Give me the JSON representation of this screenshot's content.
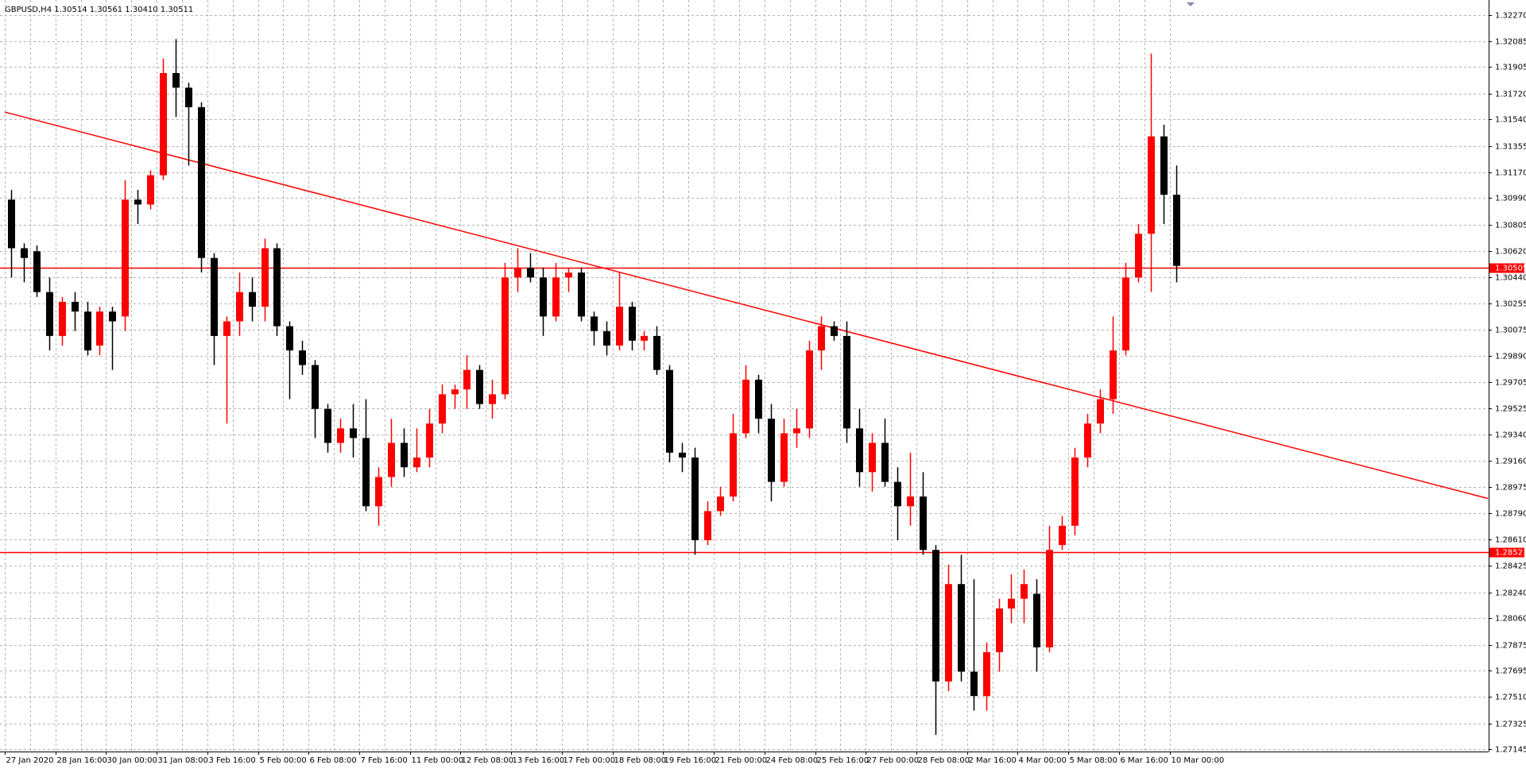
{
  "chart_data": {
    "type": "candlestick",
    "title": "GBPUSD,H4  1.30514 1.30561 1.30410 1.30511",
    "categories": [
      "27 Jan 2020",
      null,
      null,
      null,
      "28 Jan 16:00",
      null,
      null,
      null,
      "30 Jan 00:00",
      null,
      null,
      null,
      "31 Jan 08:00",
      null,
      null,
      null,
      "3 Feb 16:00",
      null,
      null,
      null,
      "5 Feb 00:00",
      null,
      null,
      null,
      "6 Feb 08:00",
      null,
      null,
      null,
      "7 Feb 16:00",
      null,
      null,
      null,
      "11 Feb 00:00",
      null,
      null,
      null,
      "12 Feb 08:00",
      null,
      null,
      null,
      "13 Feb 16:00",
      null,
      null,
      null,
      "17 Feb 00:00",
      null,
      null,
      null,
      "18 Feb 08:00",
      null,
      null,
      null,
      "19 Feb 16:00",
      null,
      null,
      null,
      "21 Feb 00:00",
      null,
      null,
      null,
      "24 Feb 08:00",
      null,
      null,
      null,
      "25 Feb 16:00",
      null,
      null,
      null,
      "27 Feb 00:00",
      null,
      null,
      null,
      "28 Feb 08:00",
      null,
      null,
      null,
      "2 Mar 16:00",
      null,
      null,
      null,
      "4 Mar 00:00",
      null,
      null,
      null,
      "5 Mar 08:00",
      null,
      null,
      null,
      "6 Mar 16:00",
      null,
      null,
      null,
      "10 Mar 00:00"
    ],
    "open": [
      1.3098,
      1.30641,
      1.3062,
      1.30335,
      1.30029,
      1.30267,
      1.30199,
      1.29962,
      1.30199,
      1.30165,
      1.3098,
      1.30946,
      1.3115,
      1.31863,
      1.31761,
      1.31625,
      1.30573,
      1.30029,
      1.30131,
      1.30335,
      1.30233,
      1.30641,
      1.30097,
      1.29928,
      1.29826,
      1.2952,
      1.29283,
      1.29384,
      1.29317,
      1.28841,
      1.29045,
      1.29283,
      1.29113,
      1.29181,
      1.29418,
      1.29622,
      1.29656,
      1.29792,
      1.29554,
      1.29622,
      1.30437,
      1.30505,
      1.30437,
      1.30165,
      1.30437,
      1.30471,
      1.30165,
      1.30063,
      1.29962,
      1.30233,
      1.29996,
      1.30029,
      1.29792,
      1.29215,
      1.29181,
      1.28604,
      1.28807,
      1.28909,
      1.2935,
      1.29724,
      1.29452,
      1.29011,
      1.2935,
      1.29384,
      1.29928,
      1.30097,
      1.30029,
      1.29384,
      1.29079,
      1.29283,
      1.29011,
      1.28841,
      1.28909,
      1.28536,
      1.27619,
      1.28298,
      1.27687,
      1.27517,
      1.27823,
      1.28128,
      1.28196,
      1.2823,
      1.27857,
      1.2857,
      1.28705,
      1.29181,
      1.29418,
      1.29588,
      1.29928,
      1.30437,
      1.30742,
      1.31421,
      1.31014
    ],
    "high": [
      1.31048,
      1.30675,
      1.30661,
      1.30437,
      1.30301,
      1.30335,
      1.30267,
      1.30233,
      1.30233,
      1.31116,
      1.31048,
      1.31184,
      1.31965,
      1.321,
      1.31795,
      1.31659,
      1.30607,
      1.30165,
      1.30471,
      1.30437,
      1.30708,
      1.30675,
      1.30131,
      1.29996,
      1.2986,
      1.29554,
      1.29452,
      1.29554,
      1.29588,
      1.29113,
      1.29452,
      1.29384,
      1.29384,
      1.2952,
      1.2969,
      1.2969,
      1.29894,
      1.29826,
      1.29724,
      1.30539,
      1.30641,
      1.30607,
      1.30505,
      1.30539,
      1.30505,
      1.30505,
      1.30199,
      1.30131,
      1.30471,
      1.30267,
      1.30063,
      1.30097,
      1.29826,
      1.29283,
      1.29249,
      1.28875,
      1.28977,
      1.29486,
      1.29826,
      1.29758,
      1.29554,
      1.29452,
      1.2952,
      1.29996,
      1.30165,
      1.30131,
      1.30131,
      1.2952,
      1.2935,
      1.29452,
      1.29113,
      1.29215,
      1.29079,
      1.2857,
      1.28434,
      1.28502,
      1.28332,
      1.27891,
      1.28196,
      1.28366,
      1.284,
      1.28332,
      1.28705,
      1.28773,
      1.29249,
      1.29486,
      1.29656,
      1.30165,
      1.30539,
      1.3081,
      1.31999,
      1.31503,
      1.31218
    ],
    "low": [
      1.30437,
      1.30403,
      1.30301,
      1.29928,
      1.29962,
      1.30063,
      1.29894,
      1.29894,
      1.29792,
      1.30063,
      1.3081,
      1.30912,
      1.31116,
      1.31557,
      1.31218,
      1.30471,
      1.29826,
      1.29418,
      1.30029,
      1.30131,
      1.30131,
      1.30029,
      1.29588,
      1.29758,
      1.29317,
      1.29215,
      1.29215,
      1.29181,
      1.28807,
      1.28705,
      1.28977,
      1.29045,
      1.29079,
      1.29113,
      1.2935,
      1.2952,
      1.2952,
      1.2952,
      1.29452,
      1.29588,
      1.30335,
      1.30403,
      1.30029,
      1.30131,
      1.30335,
      1.30131,
      1.29962,
      1.29894,
      1.29928,
      1.29928,
      1.29928,
      1.29758,
      1.29147,
      1.29079,
      1.28502,
      1.2857,
      1.28773,
      1.28875,
      1.29317,
      1.2935,
      1.28875,
      1.28977,
      1.29249,
      1.29317,
      1.29792,
      1.29996,
      1.29283,
      1.28977,
      1.28943,
      1.28977,
      1.28604,
      1.28705,
      1.28502,
      1.27246,
      1.27551,
      1.27619,
      1.27415,
      1.27415,
      1.27687,
      1.28026,
      1.28026,
      1.27687,
      1.27823,
      1.28536,
      1.28638,
      1.29113,
      1.2935,
      1.29486,
      1.29894,
      1.30403,
      1.30335,
      1.3081,
      1.30403
    ],
    "close": [
      1.30641,
      1.30573,
      1.30335,
      1.30029,
      1.30267,
      1.30199,
      1.29928,
      1.30199,
      1.30131,
      1.3098,
      1.30946,
      1.3115,
      1.31863,
      1.31761,
      1.31625,
      1.30573,
      1.30029,
      1.30131,
      1.30335,
      1.30233,
      1.30641,
      1.30097,
      1.29928,
      1.29826,
      1.2952,
      1.29283,
      1.29384,
      1.29317,
      1.28841,
      1.29045,
      1.29283,
      1.29113,
      1.29181,
      1.29418,
      1.29622,
      1.29656,
      1.29792,
      1.29554,
      1.29622,
      1.30437,
      1.30505,
      1.30437,
      1.30165,
      1.30437,
      1.30471,
      1.30165,
      1.30063,
      1.29962,
      1.30233,
      1.29996,
      1.30029,
      1.29792,
      1.29215,
      1.29181,
      1.28604,
      1.28807,
      1.28909,
      1.2935,
      1.29724,
      1.29452,
      1.29011,
      1.2935,
      1.29384,
      1.29928,
      1.30097,
      1.30029,
      1.29384,
      1.29079,
      1.29283,
      1.29011,
      1.28841,
      1.28909,
      1.28536,
      1.27619,
      1.28298,
      1.27687,
      1.27517,
      1.27823,
      1.28128,
      1.28196,
      1.28298,
      1.27857,
      1.28536,
      1.28705,
      1.29181,
      1.29418,
      1.29588,
      1.29928,
      1.30437,
      1.30742,
      1.31421,
      1.31014,
      1.30518
    ],
    "up_color": "#ff0000",
    "down_color": "#000000",
    "ylim": [
      1.2713,
      1.32345
    ],
    "yticks": [
      {
        "value": 1.3227,
        "label": "1.32270"
      },
      1.32085,
      1.31905,
      {
        "value": 1.3172,
        "label": "1.31720"
      },
      {
        "value": 1.3154,
        "label": "1.31540"
      },
      1.31355,
      {
        "value": 1.3117,
        "label": "1.31170"
      },
      {
        "value": 1.3099,
        "label": "1.30990"
      },
      1.30805,
      {
        "value": 1.3062,
        "label": "1.30620"
      },
      {
        "value": 1.3044,
        "label": "1.30440"
      },
      1.30255,
      1.30075,
      {
        "value": 1.2989,
        "label": "1.29890"
      },
      1.29705,
      1.29525,
      {
        "value": 1.2934,
        "label": "1.29340"
      },
      {
        "value": 1.2916,
        "label": "1.29160"
      },
      1.28975,
      {
        "value": 1.2879,
        "label": "1.28790"
      },
      {
        "value": 1.2861,
        "label": "1.28610"
      },
      1.28425,
      {
        "value": 1.2824,
        "label": "1.28240"
      },
      {
        "value": 1.2806,
        "label": "1.28060"
      },
      1.27875,
      1.27695,
      {
        "value": 1.2751,
        "label": "1.27510"
      },
      1.27325,
      1.27145
    ],
    "grid": true,
    "hlines": [
      {
        "value": 1.30505,
        "color": "#ff0000"
      },
      {
        "value": 1.28521,
        "color": "#ff0000"
      }
    ],
    "trendline": {
      "x": [
        -0.5,
        116.65
      ],
      "y": [
        1.31591,
        1.28895
      ],
      "color": "#ff0000"
    }
  }
}
